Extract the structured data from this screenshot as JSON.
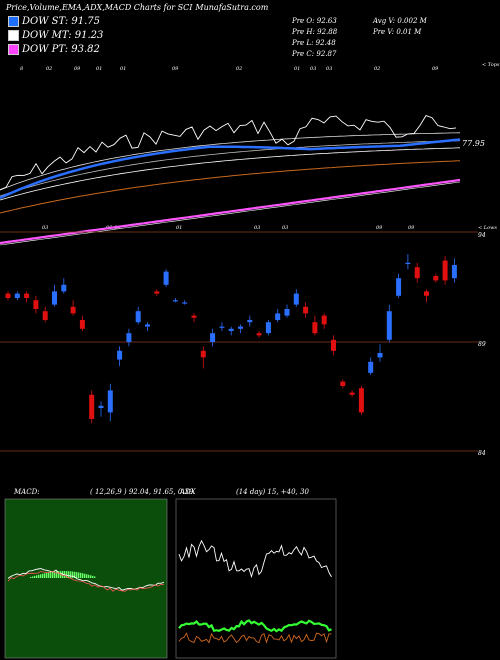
{
  "header": {
    "title": "Price,Volume,EMA,ADX,MACD Charts for SCI",
    "site": "MunafaSutra.com",
    "op_label": "Pre  O: 92.63",
    "hi_label": "Pre  H: 92.88",
    "lo_label": "Pre  L: 92.48",
    "cl_label": "Pre  C: 92.87",
    "avgv_label": "Avg V: 0.002  M",
    "prev_label": "Pre  V: 0.01 M"
  },
  "legend": [
    {
      "label": "DOW ST: 91.75",
      "color": "#1e6fff"
    },
    {
      "label": "DOW MT: 91.23",
      "color": "#ffffff"
    },
    {
      "label": "DOW PT: 93.82",
      "color": "#ff44ff"
    }
  ],
  "colors": {
    "up": "#2a6fff",
    "down": "#e01010",
    "ema_fast": "#2a6fff",
    "ema_mid": "#ffffff",
    "ema_slow": "#ff55ff",
    "ema_brown": "#c8681e",
    "macd_bg": "#0b4d0b",
    "price_line": "#8b3a1a"
  },
  "chart_data": [
    {
      "type": "line",
      "title": "EMA overview",
      "top_ticks": [
        "8",
        "02",
        "09",
        "01",
        "01",
        "09",
        "02",
        "01",
        "03",
        "03",
        "02",
        "09"
      ],
      "bottom_ticks": [
        "03",
        "09",
        "09",
        "01",
        "03",
        "03",
        "09",
        "09"
      ],
      "corner_top": "< Tops",
      "corner_bottom": "< Lows",
      "price_label": "77.95",
      "series": []
    },
    {
      "type": "candlestick",
      "title": "Price candles",
      "right_labels": [
        "94",
        "89",
        "84"
      ],
      "candles_note": "approx values",
      "candles": [
        {
          "o": 91.2,
          "c": 91.0,
          "h": 91.3,
          "l": 90.9
        },
        {
          "o": 91.0,
          "c": 91.2,
          "h": 91.3,
          "l": 90.9
        },
        {
          "o": 91.2,
          "c": 91.0,
          "h": 91.3,
          "l": 90.8
        },
        {
          "o": 90.9,
          "c": 90.5,
          "h": 91.1,
          "l": 90.3
        },
        {
          "o": 90.4,
          "c": 90.0,
          "h": 90.6,
          "l": 89.9
        },
        {
          "o": 90.7,
          "c": 91.3,
          "h": 91.6,
          "l": 90.6
        },
        {
          "o": 91.3,
          "c": 91.6,
          "h": 91.9,
          "l": 91.2
        },
        {
          "o": 90.6,
          "c": 90.3,
          "h": 90.9,
          "l": 90.2
        },
        {
          "o": 90.0,
          "c": 89.6,
          "h": 90.2,
          "l": 89.5
        },
        {
          "o": 86.6,
          "c": 85.5,
          "h": 86.8,
          "l": 85.3
        },
        {
          "o": 86.0,
          "c": 86.1,
          "h": 86.3,
          "l": 85.6
        },
        {
          "o": 85.8,
          "c": 86.8,
          "h": 87.1,
          "l": 85.4
        },
        {
          "o": 88.2,
          "c": 88.6,
          "h": 88.8,
          "l": 87.9
        },
        {
          "o": 89.0,
          "c": 89.4,
          "h": 89.6,
          "l": 88.8
        },
        {
          "o": 89.9,
          "c": 90.4,
          "h": 90.6,
          "l": 89.8
        },
        {
          "o": 89.7,
          "c": 89.8,
          "h": 89.9,
          "l": 89.5
        },
        {
          "o": 91.3,
          "c": 91.2,
          "h": 91.4,
          "l": 91.1
        },
        {
          "o": 91.6,
          "c": 92.2,
          "h": 92.3,
          "l": 91.5
        },
        {
          "o": 90.9,
          "c": 90.9,
          "h": 91.0,
          "l": 90.8
        },
        {
          "o": 90.8,
          "c": 90.8,
          "h": 90.9,
          "l": 90.7
        },
        {
          "o": 90.2,
          "c": 90.1,
          "h": 90.3,
          "l": 89.9
        },
        {
          "o": 88.6,
          "c": 88.3,
          "h": 88.8,
          "l": 87.8
        },
        {
          "o": 89.0,
          "c": 89.4,
          "h": 89.6,
          "l": 88.8
        },
        {
          "o": 89.7,
          "c": 89.7,
          "h": 89.9,
          "l": 89.5
        },
        {
          "o": 89.5,
          "c": 89.6,
          "h": 89.7,
          "l": 89.3
        },
        {
          "o": 89.6,
          "c": 89.7,
          "h": 89.8,
          "l": 89.4
        },
        {
          "o": 89.9,
          "c": 90.0,
          "h": 90.2,
          "l": 89.7
        },
        {
          "o": 89.4,
          "c": 89.3,
          "h": 89.5,
          "l": 89.2
        },
        {
          "o": 89.4,
          "c": 89.9,
          "h": 90.0,
          "l": 89.3
        },
        {
          "o": 90.0,
          "c": 90.3,
          "h": 90.5,
          "l": 89.9
        },
        {
          "o": 90.2,
          "c": 90.5,
          "h": 90.7,
          "l": 90.1
        },
        {
          "o": 90.7,
          "c": 91.2,
          "h": 91.4,
          "l": 90.6
        },
        {
          "o": 90.6,
          "c": 90.3,
          "h": 90.8,
          "l": 90.1
        },
        {
          "o": 89.9,
          "c": 89.4,
          "h": 90.2,
          "l": 89.3
        },
        {
          "o": 90.2,
          "c": 89.8,
          "h": 90.3,
          "l": 89.6
        },
        {
          "o": 89.1,
          "c": 88.6,
          "h": 89.3,
          "l": 88.4
        },
        {
          "o": 87.2,
          "c": 87.0,
          "h": 87.3,
          "l": 86.9
        },
        {
          "o": 86.7,
          "c": 86.6,
          "h": 86.8,
          "l": 86.5
        },
        {
          "o": 86.9,
          "c": 85.8,
          "h": 87.0,
          "l": 85.7
        },
        {
          "o": 87.6,
          "c": 88.1,
          "h": 88.3,
          "l": 87.5
        },
        {
          "o": 88.3,
          "c": 88.5,
          "h": 88.9,
          "l": 88.1
        },
        {
          "o": 89.1,
          "c": 90.4,
          "h": 90.7,
          "l": 89.0
        },
        {
          "o": 91.1,
          "c": 91.9,
          "h": 92.1,
          "l": 91.0
        },
        {
          "o": 92.6,
          "c": 92.6,
          "h": 93.0,
          "l": 92.3
        },
        {
          "o": 92.4,
          "c": 91.9,
          "h": 92.6,
          "l": 91.7
        },
        {
          "o": 91.3,
          "c": 91.1,
          "h": 91.4,
          "l": 90.8
        },
        {
          "o": 92.0,
          "c": 91.8,
          "h": 92.1,
          "l": 91.7
        },
        {
          "o": 92.7,
          "c": 91.8,
          "h": 92.9,
          "l": 91.6
        },
        {
          "o": 91.9,
          "c": 92.5,
          "h": 92.8,
          "l": 91.7
        }
      ]
    },
    {
      "type": "line",
      "title": "MACD",
      "label": "MACD:",
      "params": "( 12,26,9 ) 92.04, 91.65, 0.39"
    },
    {
      "type": "line",
      "title": "ADX",
      "label": "ADX",
      "params": "(14  day) 15, +40, 30"
    }
  ]
}
